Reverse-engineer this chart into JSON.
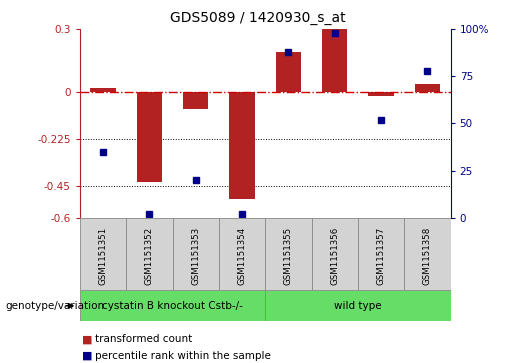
{
  "title": "GDS5089 / 1420930_s_at",
  "samples": [
    "GSM1151351",
    "GSM1151352",
    "GSM1151353",
    "GSM1151354",
    "GSM1151355",
    "GSM1151356",
    "GSM1151357",
    "GSM1151358"
  ],
  "red_values": [
    0.02,
    -0.43,
    -0.08,
    -0.51,
    0.19,
    0.3,
    -0.02,
    0.04
  ],
  "blue_values": [
    35,
    2,
    20,
    2,
    88,
    98,
    52,
    78
  ],
  "ylim_left": [
    -0.6,
    0.3
  ],
  "ylim_right": [
    0,
    100
  ],
  "yticks_left": [
    0.3,
    0.0,
    -0.225,
    -0.45,
    -0.6
  ],
  "yticks_right": [
    100,
    75,
    50,
    25,
    0
  ],
  "red_color": "#b22222",
  "blue_color": "#00008b",
  "dashed_line_color": "#cc0000",
  "group1_label": "cystatin B knockout Cstb-/-",
  "group2_label": "wild type",
  "group1_indices": [
    0,
    1,
    2,
    3
  ],
  "group2_indices": [
    4,
    5,
    6,
    7
  ],
  "group_color": "#66dd66",
  "legend_red_label": "transformed count",
  "legend_blue_label": "percentile rank within the sample",
  "genotype_label": "genotype/variation",
  "bar_width": 0.55,
  "bg_color": "#ffffff",
  "plot_bg_color": "#ffffff",
  "sample_box_color": "#d3d3d3",
  "title_fontsize": 10,
  "tick_fontsize": 7.5,
  "label_fontsize": 7.5,
  "sample_fontsize": 6.2,
  "group_fontsize": 7.5,
  "legend_fontsize": 7.5
}
